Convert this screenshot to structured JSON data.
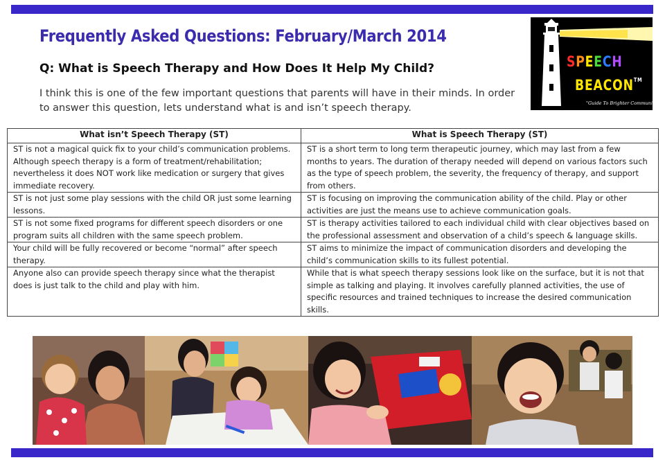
{
  "header": {
    "title": "Frequently Asked Questions: February/March 2014",
    "question": "Q: What is Speech Therapy and How Does It Help My Child?",
    "intro": "I think this is one of the few important questions that parents will have in their minds. In order to answer this question, lets understand what is and isn’t speech therapy."
  },
  "logo": {
    "word1_letters": [
      "S",
      "P",
      "E",
      "E",
      "C",
      "H"
    ],
    "word1_colors": [
      "#ff2a2a",
      "#ff8c1a",
      "#ffe600",
      "#4cd93a",
      "#2b7bff",
      "#b04dff"
    ],
    "word2": "BEACON",
    "trademark": "TM",
    "tagline": "\"Guide To Brighter Communication\""
  },
  "table": {
    "headers": [
      "What isn’t Speech Therapy (ST)",
      "What is Speech Therapy (ST)"
    ],
    "rows": [
      [
        "ST is not a magical quick fix to your child’s communication problems. Although speech therapy is a form of treatment/rehabilitation; nevertheless it does NOT work like medication or surgery that gives immediate recovery.",
        "ST is a short term to long term therapeutic journey, which may last from a few months to years. The duration of therapy needed will depend on various factors such as the type of speech problem, the severity, the frequency of therapy, and support from others."
      ],
      [
        "ST is not just some play sessions with the child OR just some learning lessons.",
        "ST is focusing on improving the communication ability of the child. Play or other activities are just the means use to achieve communication goals."
      ],
      [
        "ST is not some fixed programs for different speech disorders or one program suits all children with the same speech problem.",
        "ST is therapy activities tailored to each individual child with clear objectives based on the professional assessment and observation of a child’s speech & language skills."
      ],
      [
        "Your child will be fully recovered or become “normal” after speech therapy.",
        "ST aims to minimize the impact of communication disorders and developing the child’s communication skills to its fullest potential."
      ],
      [
        "Anyone also can provide speech therapy since what the therapist does is just talk to the child and play with him.",
        "While that is what speech therapy sessions look like on the surface, but it is not that simple as talking and playing. It involves carefully planned activities, the use of specific resources and trained techniques to increase the desired communication skills."
      ]
    ]
  },
  "colors": {
    "accent_bar": "#3a27c9",
    "title": "#3b2cae"
  }
}
